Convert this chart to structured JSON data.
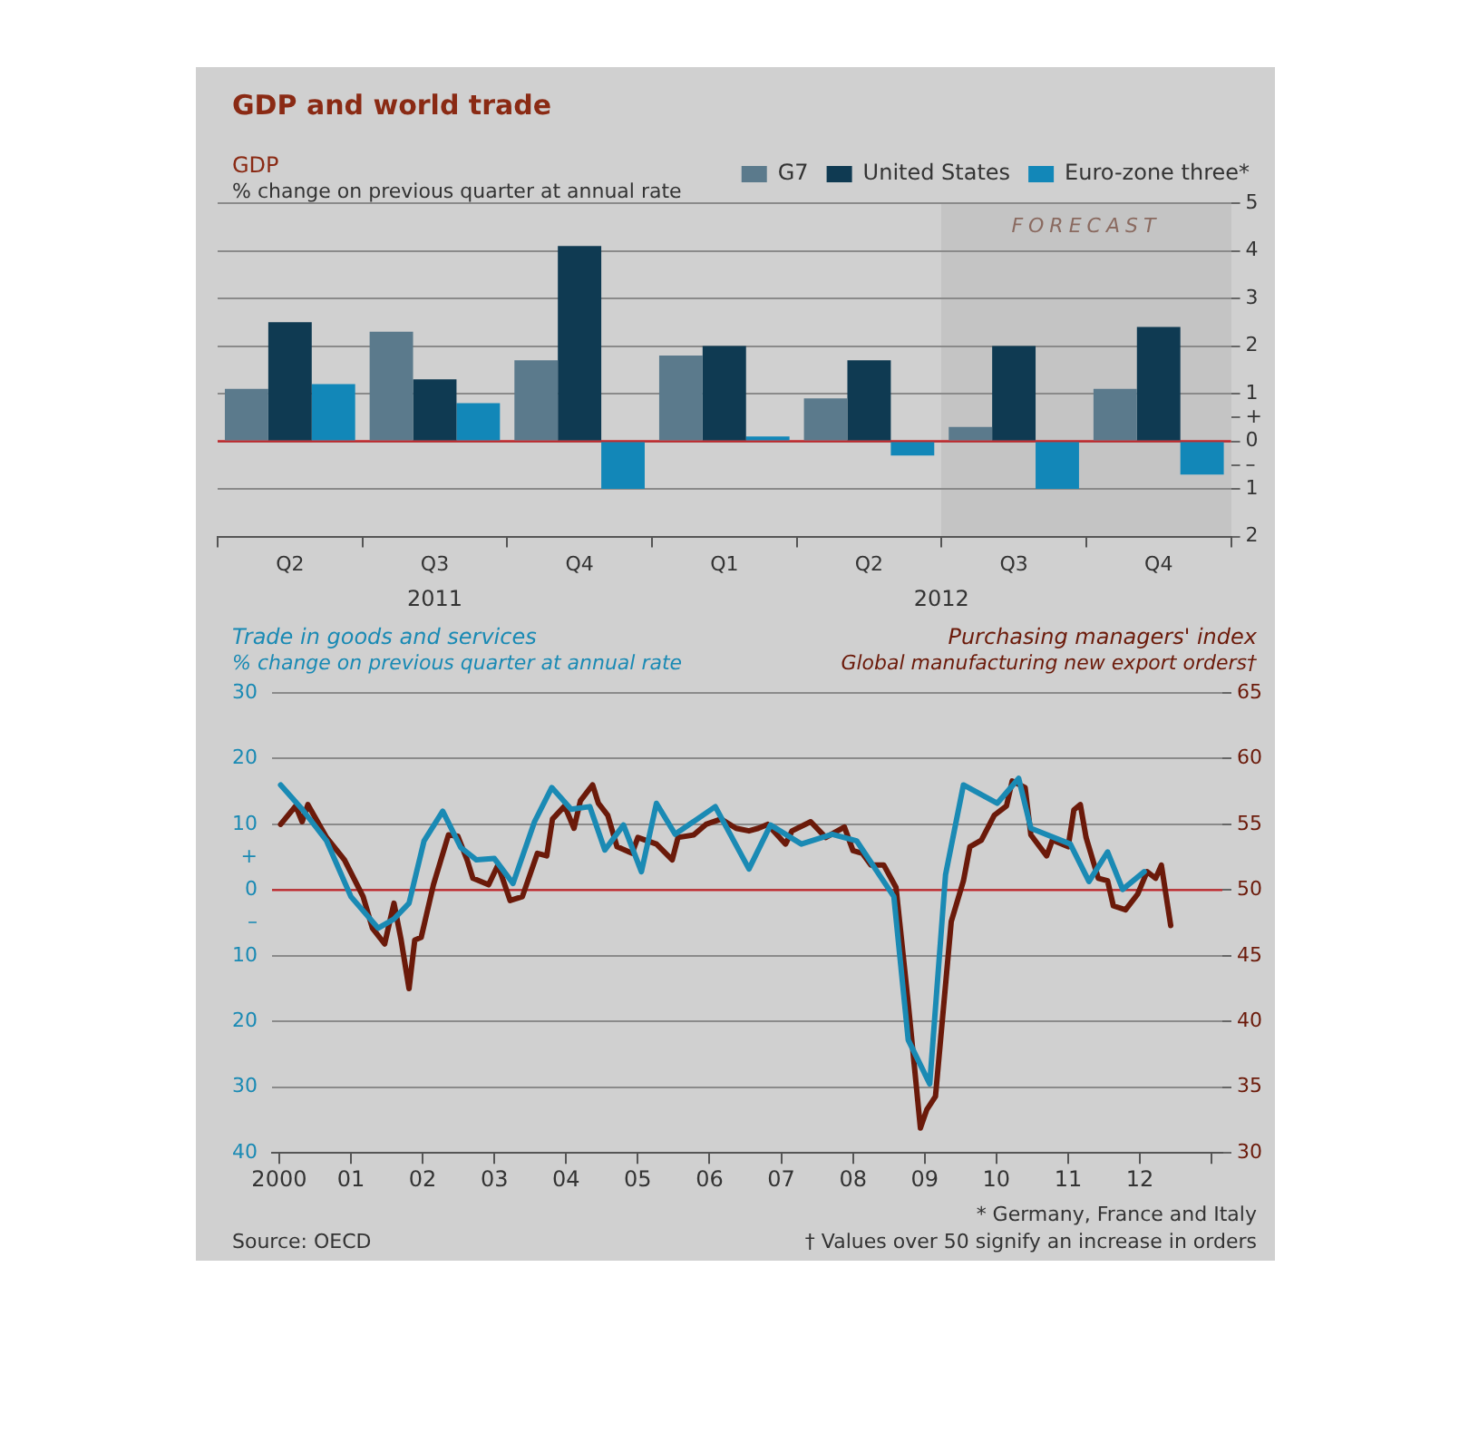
{
  "chart_data": [
    {
      "type": "bar",
      "title": "GDP and world trade",
      "subtitle": "GDP",
      "ylabel": "% change on previous quarter at annual rate",
      "categories": [
        "Q2",
        "Q3",
        "Q4",
        "Q1",
        "Q2",
        "Q3",
        "Q4"
      ],
      "series": [
        {
          "name": "G7",
          "color": "#5b7a8c",
          "values": [
            1.1,
            2.3,
            1.7,
            1.8,
            0.9,
            0.3,
            1.1
          ]
        },
        {
          "name": "United States",
          "color": "#0f3a52",
          "values": [
            2.5,
            1.3,
            4.1,
            2.0,
            1.7,
            2.0,
            2.4
          ]
        },
        {
          "name": "Euro-zone three*",
          "color": "#1287b8",
          "values": [
            1.2,
            0.8,
            -1.0,
            0.1,
            -0.3,
            -1.0,
            -0.7
          ]
        }
      ],
      "ylim": [
        -2,
        5
      ],
      "yticks": [
        {
          "value": -2,
          "label": "2"
        },
        {
          "value": -1,
          "label": "1"
        },
        {
          "value": -0.5,
          "label": "–"
        },
        0,
        {
          "value": 0.5,
          "label": "+"
        },
        1,
        2,
        3,
        4,
        5
      ],
      "legend": "top right",
      "grid": "y",
      "ref_lines": [
        {
          "axis": "y",
          "value": 0,
          "color": "#c0282d"
        }
      ],
      "annotations": [
        "2011",
        "2012",
        "* Germany, France and Italy",
        "FORECAST"
      ]
    },
    {
      "type": "line",
      "ylabel": "Trade in goods and services",
      "y2label": "Purchasing managers' index",
      "series": [
        {
          "color": "#1a8ab4",
          "axis": "y",
          "x": [
            2000.02,
            2000.32,
            2000.66,
            2001.0,
            2001.38,
            2001.6,
            2001.81,
            2002.02,
            2002.28,
            2002.53,
            2002.75,
            2003.0,
            2003.26,
            2003.56,
            2003.8,
            2004.07,
            2004.33,
            2004.54,
            2004.8,
            2005.05,
            2005.26,
            2005.52,
            2006.08,
            2006.55,
            2006.85,
            2007.28,
            2007.71,
            2008.05,
            2008.57,
            2008.77,
            2009.07,
            2009.29,
            2009.54,
            2010.01,
            2010.31,
            2010.48,
            2011.03,
            2011.29,
            2011.55,
            2011.76,
            2012.06
          ],
          "values": [
            16,
            12.3,
            7.5,
            -1,
            -5.8,
            -4.4,
            -2,
            7.5,
            12,
            6.5,
            4.6,
            4.8,
            1,
            10.4,
            15.6,
            12.3,
            12.7,
            6.1,
            9.9,
            2.8,
            13.2,
            8.5,
            12.7,
            3.2,
            9.9,
            7,
            8.5,
            7.5,
            -1,
            -22.8,
            -29.5,
            2.3,
            16,
            13.2,
            17,
            9.4,
            7,
            1.3,
            5.8,
            0.1,
            2.8
          ]
        },
        {
          "color": "#6b1a0a",
          "axis": "y2",
          "x": [
            2000.02,
            2000.23,
            2000.32,
            2000.4,
            2000.66,
            2000.91,
            2001.17,
            2001.3,
            2001.47,
            2001.6,
            2001.7,
            2001.81,
            2001.89,
            2001.98,
            2002.15,
            2002.36,
            2002.49,
            2002.62,
            2002.7,
            2002.92,
            2003.05,
            2003.22,
            2003.39,
            2003.6,
            2003.73,
            2003.81,
            2003.98,
            2004.11,
            2004.2,
            2004.37,
            2004.45,
            2004.58,
            2004.71,
            2004.92,
            2005.0,
            2005.26,
            2005.48,
            2005.56,
            2005.78,
            2005.95,
            2006.16,
            2006.37,
            2006.55,
            2006.68,
            2006.81,
            2007.06,
            2007.15,
            2007.41,
            2007.62,
            2007.88,
            2008.0,
            2008.13,
            2008.25,
            2008.43,
            2008.6,
            2008.77,
            2008.94,
            2009.03,
            2009.15,
            2009.37,
            2009.54,
            2009.63,
            2009.79,
            2009.97,
            2010.14,
            2010.22,
            2010.4,
            2010.48,
            2010.7,
            2010.78,
            2011.0,
            2011.08,
            2011.17,
            2011.25,
            2011.42,
            2011.55,
            2011.63,
            2011.8,
            2011.97,
            2012.1,
            2012.22,
            2012.3,
            2012.43
          ],
          "values": [
            55,
            56.4,
            55.2,
            56.5,
            54,
            52.3,
            49.5,
            47.1,
            45.9,
            49,
            46.2,
            42.5,
            46.2,
            46.4,
            50.4,
            54.2,
            54.1,
            52.3,
            50.9,
            50.4,
            51.9,
            49.2,
            49.5,
            52.8,
            52.6,
            55.4,
            56.4,
            54.7,
            56.8,
            58,
            56.6,
            55.7,
            53.3,
            52.8,
            54,
            53.5,
            52.3,
            54,
            54.2,
            55,
            55.4,
            54.7,
            54.5,
            54.7,
            55,
            53.5,
            54.5,
            55.2,
            54,
            54.8,
            53,
            52.8,
            51.9,
            51.9,
            50.2,
            41.4,
            31.9,
            33.3,
            34.3,
            47.6,
            50.7,
            53.3,
            53.8,
            55.7,
            56.4,
            58.3,
            57.8,
            54.2,
            52.6,
            53.8,
            53.3,
            56.1,
            56.5,
            54,
            50.9,
            50.7,
            48.8,
            48.5,
            49.7,
            51.4,
            50.9,
            51.9,
            47.3
          ]
        }
      ],
      "xlim": [
        1999.9,
        2013.15
      ],
      "xticks": [
        2000,
        {
          "value": 2001,
          "label": "01"
        },
        {
          "value": 2002,
          "label": "02"
        },
        {
          "value": 2003,
          "label": "03"
        },
        {
          "value": 2004,
          "label": "04"
        },
        {
          "value": 2005,
          "label": "05"
        },
        {
          "value": 2006,
          "label": "06"
        },
        {
          "value": 2007,
          "label": "07"
        },
        {
          "value": 2008,
          "label": "08"
        },
        {
          "value": 2009,
          "label": "09"
        },
        {
          "value": 2010,
          "label": "10"
        },
        {
          "value": 2011,
          "label": "11"
        },
        {
          "value": 2012,
          "label": "12"
        },
        {
          "value": 2013,
          "label": null
        }
      ],
      "ylim": [
        -40,
        30
      ],
      "yticks": [
        {
          "value": -40,
          "label": "40"
        },
        {
          "value": -30,
          "label": "30"
        },
        {
          "value": -20,
          "label": "20"
        },
        {
          "value": -10,
          "label": "10"
        },
        {
          "value": -5,
          "label": "–"
        },
        0,
        {
          "value": 5,
          "label": "+"
        },
        10,
        20,
        30
      ],
      "y2lim": [
        30,
        65
      ],
      "y2ticks": [
        30,
        35,
        40,
        45,
        50,
        55,
        60,
        65
      ],
      "grid": "y",
      "ref_lines": [
        {
          "axis": "y",
          "value": 0,
          "color": "#c0282d"
        }
      ],
      "annotations": [
        "% change on previous quarter at annual rate",
        "Global manufacturing new export orders†",
        "† Values over 50 signify an increase in orders",
        "Source: OECD"
      ]
    }
  ]
}
